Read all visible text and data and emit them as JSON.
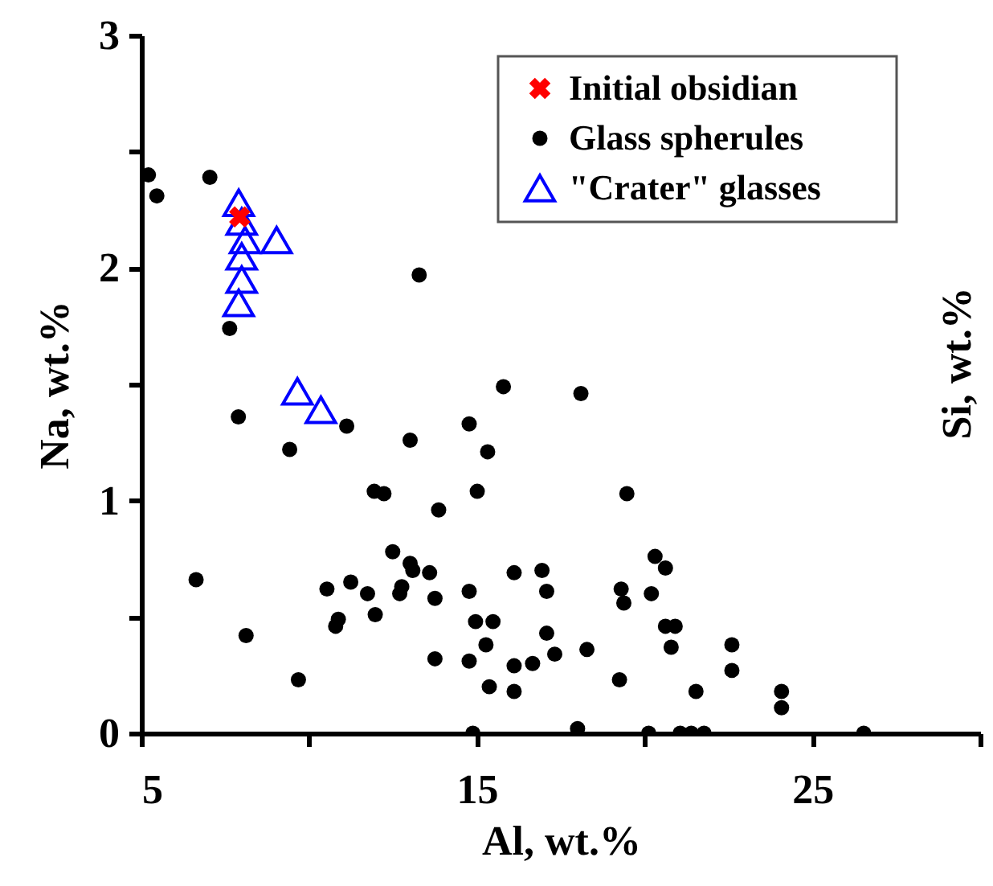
{
  "chart_data": {
    "type": "scatter",
    "xlabel": "Al, wt.%",
    "ylabel": "Na, wt.%",
    "y2label": "Si, wt.%",
    "xlim": [
      5,
      30
    ],
    "xticks": [
      5,
      {
        "value": 10,
        "label": null
      },
      15,
      {
        "value": 20,
        "label": null
      },
      25,
      {
        "value": 30,
        "label": null
      }
    ],
    "ylim": [
      0,
      3
    ],
    "yticks": [
      0,
      {
        "value": 0.5,
        "label": null
      },
      1,
      {
        "value": 1.5,
        "label": null
      },
      2,
      {
        "value": 2.5,
        "label": null
      },
      3
    ],
    "grid": false,
    "legend": "top right",
    "series": [
      {
        "name": "Glass spherules",
        "color": "#000000",
        "marker": "circle",
        "x": [
          5.21,
          5.46,
          7.04,
          13.28,
          7.63,
          15.79,
          7.89,
          11.12,
          14.77,
          13.01,
          9.42,
          15.32,
          11.94,
          12.23,
          15.01,
          13.86,
          12.49,
          13.01,
          13.09,
          13.59,
          6.63,
          10.53,
          11.24,
          11.74,
          12.76,
          12.7,
          13.75,
          14.77,
          16.11,
          16.94,
          17.08,
          10.87,
          10.79,
          11.97,
          8.12,
          14.96,
          15.48,
          15.27,
          17.08,
          13.75,
          14.77,
          16.11,
          16.66,
          17.32,
          15.37,
          16.11,
          9.68,
          14.88,
          18.0,
          18.1,
          19.47,
          20.31,
          20.62,
          19.3,
          19.38,
          20.2,
          20.62,
          20.91,
          20.79,
          18.28,
          19.25,
          21.53,
          22.6,
          22.6,
          24.08,
          24.08,
          20.12,
          21.06,
          21.39,
          21.77,
          26.53
        ],
        "values": [
          2.4,
          2.31,
          2.39,
          1.97,
          1.74,
          1.49,
          1.36,
          1.32,
          1.33,
          1.26,
          1.22,
          1.21,
          1.04,
          1.03,
          1.04,
          0.96,
          0.78,
          0.73,
          0.7,
          0.69,
          0.66,
          0.62,
          0.65,
          0.6,
          0.63,
          0.6,
          0.58,
          0.61,
          0.69,
          0.7,
          0.61,
          0.49,
          0.46,
          0.51,
          0.42,
          0.48,
          0.48,
          0.38,
          0.43,
          0.32,
          0.31,
          0.29,
          0.3,
          0.34,
          0.2,
          0.18,
          0.23,
          0.0,
          0.02,
          1.46,
          1.03,
          0.76,
          0.71,
          0.62,
          0.56,
          0.6,
          0.46,
          0.46,
          0.37,
          0.36,
          0.23,
          0.18,
          0.38,
          0.27,
          0.18,
          0.11,
          0.0,
          0.0,
          0.0,
          0.0,
          0.0
        ]
      },
      {
        "name": "\"Crater\" glasses",
        "color": "#0000ff",
        "marker": "triangle",
        "x": [
          7.9,
          7.99,
          8.09,
          7.99,
          7.99,
          7.9,
          9.03,
          9.65,
          10.35
        ],
        "values": [
          2.28,
          2.2,
          2.12,
          2.05,
          1.95,
          1.85,
          2.12,
          1.47,
          1.39
        ]
      },
      {
        "name": "Initial obsidian",
        "color": "#ff0000",
        "marker": "cross",
        "x": [
          7.93
        ],
        "values": [
          2.22
        ]
      }
    ]
  }
}
